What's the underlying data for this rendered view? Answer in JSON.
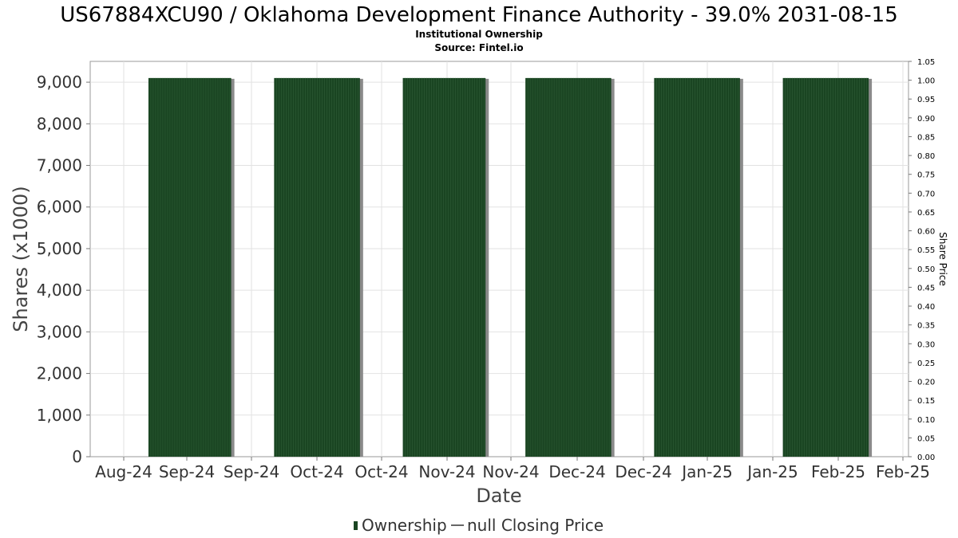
{
  "chart_data": {
    "type": "bar",
    "title": "US67884XCU90 / Oklahoma Development Finance Authority - 39.0% 2031-08-15",
    "subtitle": "Institutional Ownership",
    "source": "Source: Fintel.io",
    "xlabel": "Date",
    "ylabel": "Shares (x1000)",
    "y2label": "Share Price",
    "x_tick_labels": [
      "Aug-24",
      "Sep-24",
      "Sep-24",
      "Oct-24",
      "Oct-24",
      "Nov-24",
      "Nov-24",
      "Dec-24",
      "Dec-24",
      "Jan-25",
      "Jan-25",
      "Feb-25",
      "Feb-25"
    ],
    "ylim": [
      0,
      9500
    ],
    "y_ticks": [
      0,
      1000,
      2000,
      3000,
      4000,
      5000,
      6000,
      7000,
      8000,
      9000
    ],
    "y_tick_labels": [
      "0",
      "1,000",
      "2,000",
      "3,000",
      "4,000",
      "5,000",
      "6,000",
      "7,000",
      "8,000",
      "9,000"
    ],
    "y2lim": [
      0,
      1.05
    ],
    "y2_tick_labels": [
      "0.00",
      "0.05",
      "0.10",
      "0.15",
      "0.20",
      "0.25",
      "0.30",
      "0.35",
      "0.40",
      "0.45",
      "0.50",
      "0.55",
      "0.60",
      "0.65",
      "0.70",
      "0.75",
      "0.80",
      "0.85",
      "0.90",
      "0.95",
      "1.00",
      "1.05"
    ],
    "series": [
      {
        "name": "Ownership",
        "color": "#1a4522",
        "bars": [
          {
            "start": "2024-08-29",
            "end": "2024-09-25",
            "value": 9100
          },
          {
            "start": "2024-10-09",
            "end": "2024-11-06",
            "value": 9100
          },
          {
            "start": "2024-11-20",
            "end": "2024-12-17",
            "value": 9100
          },
          {
            "start": "2024-12-30",
            "end": "2025-01-27",
            "value": 9100
          },
          {
            "start": "2025-02-10",
            "end": "2025-03-10",
            "value": 9100
          },
          {
            "start": "2025-03-24",
            "end": "2025-04-21",
            "value": 9100
          }
        ]
      },
      {
        "name": "null Closing Price",
        "color": "#333333",
        "values": []
      }
    ],
    "grid": true,
    "legend_position": "bottom"
  }
}
